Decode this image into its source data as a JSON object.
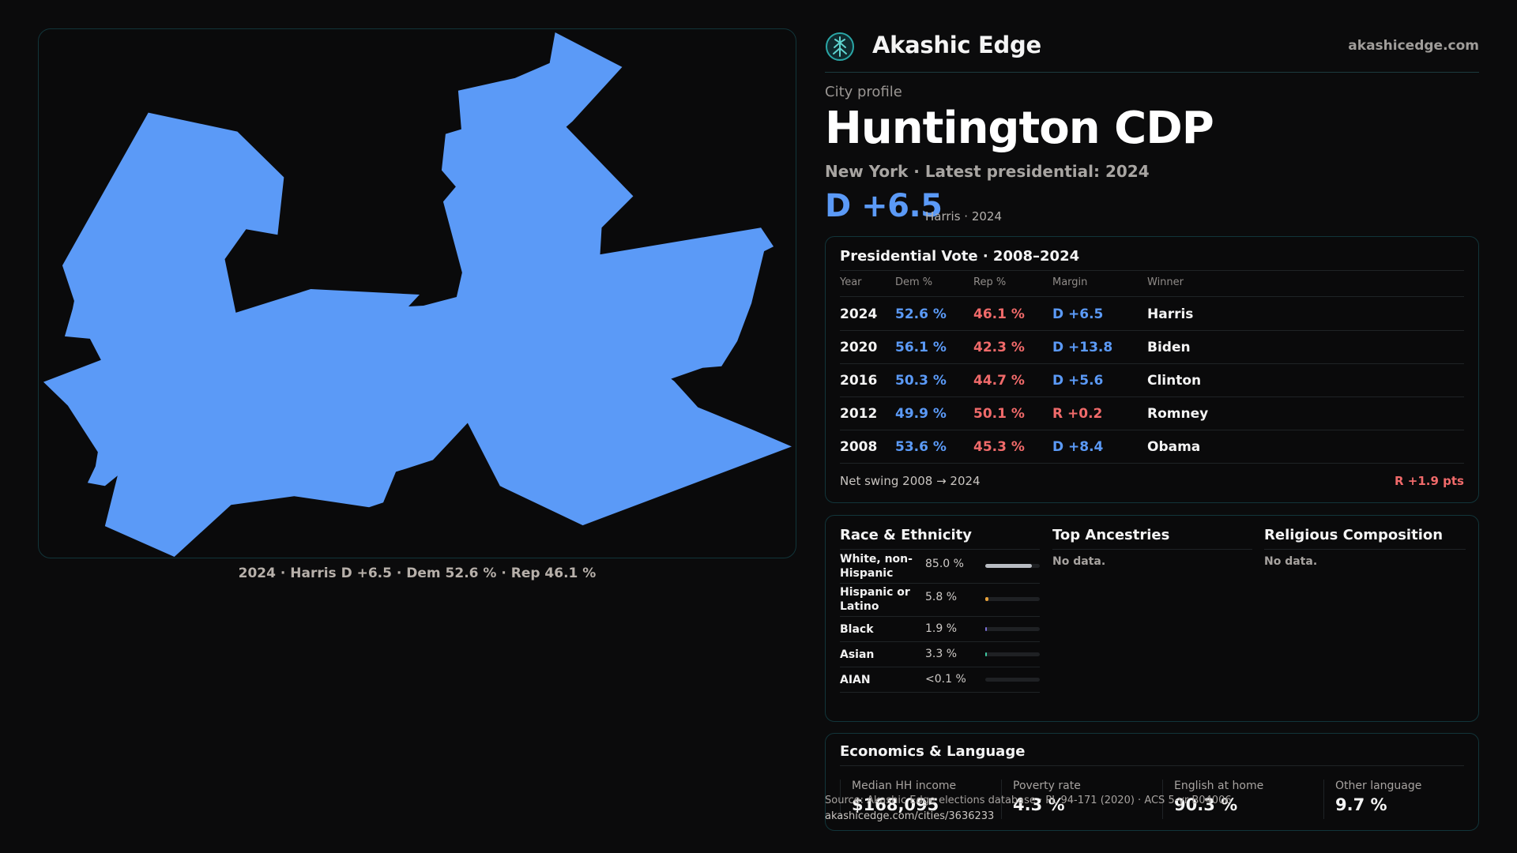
{
  "map": {
    "fill_color": "#5b9af7",
    "caption": "2024 · Harris D +6.5 · Dem 52.6 % · Rep 46.1 %"
  },
  "brand": {
    "name": "Akashic Edge",
    "domain": "akashicedge.com",
    "logo_icon": "tree-icon",
    "accent": "#2aa6a6"
  },
  "profile": {
    "label": "City profile",
    "city": "Huntington CDP",
    "subtitle": "New York  · Latest presidential: 2024",
    "margin": "D +6.5",
    "margin_note": "Harris · 2024"
  },
  "vote_table": {
    "title": "Presidential Vote · 2008–2024",
    "headers": {
      "year": "Year",
      "dem": "Dem %",
      "rep": "Rep %",
      "margin": "Margin",
      "winner": "Winner"
    },
    "rows": [
      {
        "year": "2024",
        "dem": "52.6 %",
        "rep": "46.1 %",
        "margin": "D +6.5",
        "party": "D",
        "winner": "Harris"
      },
      {
        "year": "2020",
        "dem": "56.1 %",
        "rep": "42.3 %",
        "margin": "D +13.8",
        "party": "D",
        "winner": "Biden"
      },
      {
        "year": "2016",
        "dem": "50.3 %",
        "rep": "44.7 %",
        "margin": "D +5.6",
        "party": "D",
        "winner": "Clinton"
      },
      {
        "year": "2012",
        "dem": "49.9 %",
        "rep": "50.1 %",
        "margin": "R +0.2",
        "party": "R",
        "winner": "Romney"
      },
      {
        "year": "2008",
        "dem": "53.6 %",
        "rep": "45.3 %",
        "margin": "D +8.4",
        "party": "D",
        "winner": "Obama"
      }
    ],
    "swing_label": "Net swing 2008 → 2024",
    "swing_value": "R +1.9 pts"
  },
  "race": {
    "title": "Race & Ethnicity",
    "rows": [
      {
        "label": "White, non-Hispanic",
        "value": "85.0 %",
        "share": 0.85,
        "color": "#b8bcc2"
      },
      {
        "label": "Hispanic or Latino",
        "value": "5.8 %",
        "share": 0.058,
        "color": "#e8a23a"
      },
      {
        "label": "Black",
        "value": "1.9 %",
        "share": 0.019,
        "color": "#7b6fd6"
      },
      {
        "label": "Asian",
        "value": "3.3 %",
        "share": 0.033,
        "color": "#3fc9a2"
      },
      {
        "label": "AIAN",
        "value": "<0.1 %",
        "share": 0.0,
        "color": "#7b6fd6"
      }
    ]
  },
  "ancestries": {
    "title": "Top Ancestries",
    "empty": "No data."
  },
  "religion": {
    "title": "Religious Composition",
    "empty": "No data."
  },
  "economics": {
    "title": "Economics & Language",
    "cells": [
      {
        "label": "Median HH income",
        "value": "$168,095"
      },
      {
        "label": "Poverty rate",
        "value": "4.3 %"
      },
      {
        "label": "English at home",
        "value": "90.3 %"
      },
      {
        "label": "Other language",
        "value": "9.7 %"
      }
    ]
  },
  "footer": {
    "source": "Source: Akashic Edge elections database · PL 94-171 (2020) · ACS 5-yr B04006",
    "url": "akashicedge.com/cities/3636233"
  }
}
